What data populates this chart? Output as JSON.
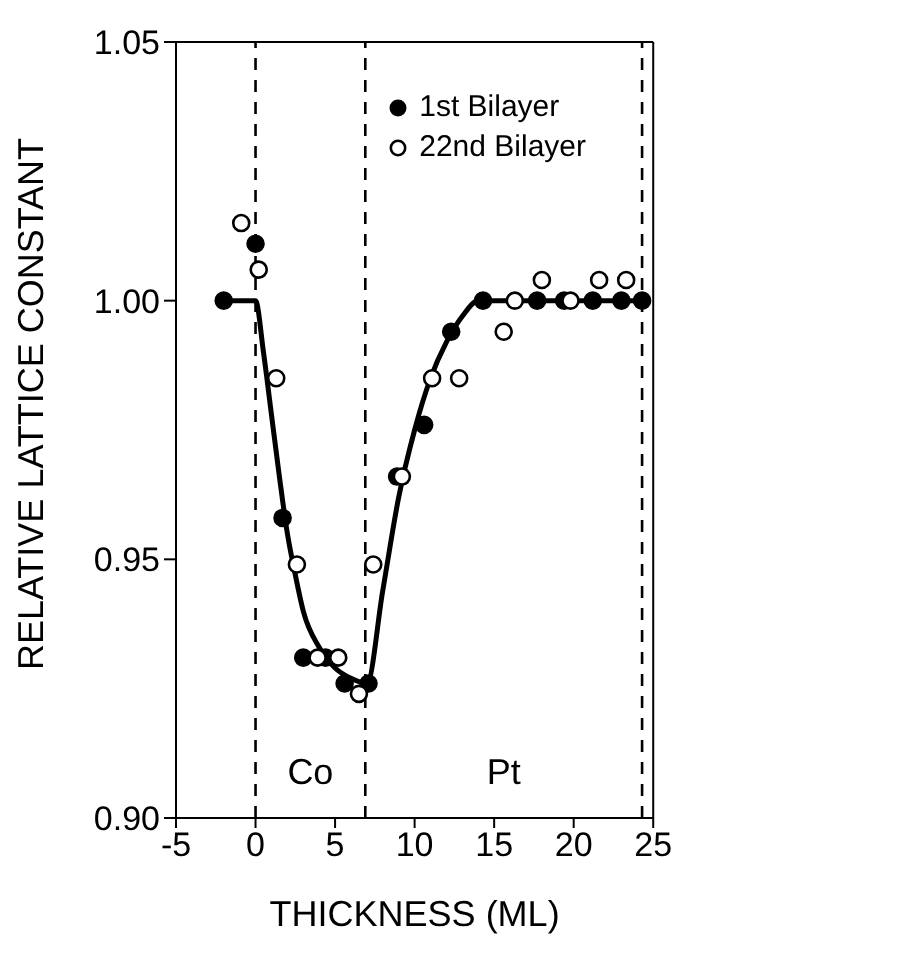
{
  "chart_data": {
    "type": "scatter",
    "xlabel": "THICKNESS (ML)",
    "ylabel": "RELATIVE LATTICE CONSTANT",
    "xlim": [
      -5,
      25
    ],
    "xticks": [
      -5,
      0,
      5,
      10,
      15,
      20,
      25
    ],
    "ylim": [
      0.9,
      1.05
    ],
    "yticks": [
      {
        "value": 0.9,
        "label": "0.90"
      },
      {
        "value": 0.95,
        "label": "0.95"
      },
      {
        "value": 1.0,
        "label": "1.00"
      },
      {
        "value": 1.05,
        "label": "1.05"
      }
    ],
    "grid": false,
    "legend": "top right",
    "series": [
      {
        "name": "1st Bilayer",
        "marker": "circle",
        "color": "#000000",
        "x": [
          -2,
          0,
          1.7,
          3,
          4.4,
          5.6,
          7.1,
          8.9,
          10.6,
          12.3,
          14.3,
          17.7,
          19.4,
          21.2,
          23,
          24.3
        ],
        "values": [
          1.0,
          1.011,
          0.958,
          0.931,
          0.931,
          0.926,
          0.926,
          0.966,
          0.976,
          0.994,
          1.0,
          1.0,
          1.0,
          1.0,
          1.0,
          1.0
        ]
      },
      {
        "name": "22nd Bilayer",
        "marker": "circle",
        "color": "#000000",
        "x": [
          -0.9,
          0.2,
          1.3,
          2.6,
          3.9,
          5.2,
          6.5,
          7.4,
          9.2,
          11.1,
          12.8,
          15.6,
          16.3,
          18,
          19.8,
          21.6,
          23.3
        ],
        "values": [
          1.015,
          1.006,
          0.985,
          0.949,
          0.931,
          0.931,
          0.924,
          0.949,
          0.966,
          0.985,
          0.985,
          0.994,
          1.0,
          1.004,
          1.0,
          1.004,
          1.004
        ]
      },
      {
        "type": "line",
        "marker": "none",
        "color": "#000000",
        "x": [
          -2,
          0,
          0.5,
          1,
          1.5,
          2,
          2.5,
          3,
          4,
          5,
          6,
          7,
          8,
          9,
          10,
          11,
          12,
          13,
          14,
          24.3
        ],
        "values": [
          1.0,
          1.0,
          0.99,
          0.978,
          0.966,
          0.955,
          0.947,
          0.94,
          0.933,
          0.929,
          0.927,
          0.926,
          0.944,
          0.962,
          0.975,
          0.985,
          0.992,
          0.997,
          1.0,
          1.0
        ]
      }
    ],
    "ref_lines": [
      {
        "axis": "x",
        "value": 0,
        "line_style": "dashed"
      },
      {
        "axis": "x",
        "value": 6.9,
        "line_style": "dashed"
      },
      {
        "axis": "x",
        "value": 24.3,
        "line_style": "dashed"
      }
    ],
    "annotations": [
      "Co",
      "Pt"
    ]
  }
}
